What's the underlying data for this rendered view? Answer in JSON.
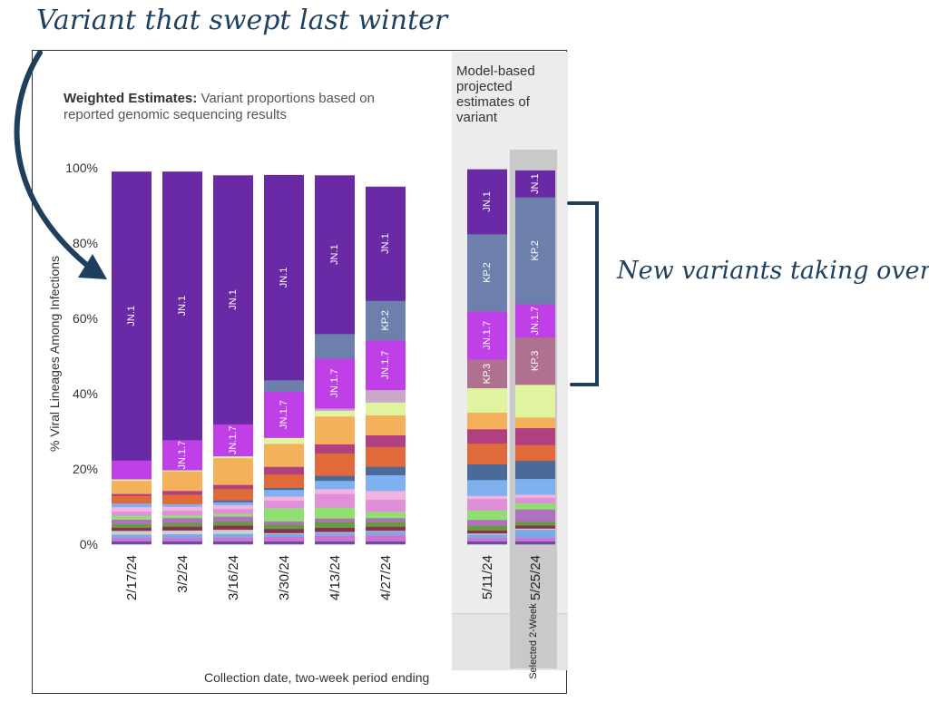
{
  "annotations": {
    "top": "Variant that swept last winter",
    "right": "New variants taking over"
  },
  "panel": {
    "title_bold": "Weighted Estimates:",
    "title_rest": "Variant proportions based on reported genomic sequencing results",
    "projected_title": "Model-based projected estimates of variant",
    "selected_label": "Selected 2-Week"
  },
  "colors": {
    "JN.1": "#6a2aa6",
    "KP.2": "#6d7fab",
    "JN.1.7": "#c040e8",
    "KP.3": "#b07090",
    "annotation": "#1f3f5f"
  },
  "chart_data": {
    "type": "bar",
    "stacked": true,
    "xlabel": "Collection date, two-week period ending",
    "ylabel": "% Viral Lineages Among Infections",
    "ylim": [
      0,
      100
    ],
    "yticks": [
      "0%",
      "20%",
      "40%",
      "60%",
      "80%",
      "100%"
    ],
    "categories": [
      "2/17/24",
      "3/2/24",
      "3/16/24",
      "3/30/24",
      "4/13/24",
      "4/27/24",
      "5/11/24",
      "5/25/24"
    ],
    "projected_categories": [
      "5/11/24",
      "5/25/24"
    ],
    "selected_category": "5/25/24",
    "segment_labels": [
      "JN.1",
      "KP.2",
      "JN.1.7",
      "KP.3"
    ],
    "series": [
      {
        "name": "",
        "color": "#6a4fa0",
        "values": [
          0.8,
          0.8,
          0.8,
          0.8,
          0.8,
          0.8,
          0.8,
          0.8
        ]
      },
      {
        "name": "",
        "color": "#d070d0",
        "values": [
          0.9,
          0.9,
          1.0,
          1.2,
          1.5,
          1.6,
          0.9,
          0.9
        ]
      },
      {
        "name": "",
        "color": "#7da8e8",
        "values": [
          0.9,
          1.0,
          1.0,
          0.8,
          0.8,
          1.0,
          0.9,
          2.2
        ]
      },
      {
        "name": "",
        "color": "#cfcfcf",
        "values": [
          1.0,
          1.0,
          1.1,
          0.2,
          0.2,
          0.2,
          0.3,
          0.3
        ]
      },
      {
        "name": "",
        "color": "#8a3050",
        "values": [
          0.8,
          1.0,
          1.1,
          1.1,
          1.1,
          1.1,
          0.8,
          0.8
        ]
      },
      {
        "name": "",
        "color": "#6a9a40",
        "values": [
          1.0,
          1.0,
          1.1,
          1.1,
          1.6,
          1.3,
          1.3,
          1.0
        ]
      },
      {
        "name": "",
        "color": "#b070c0",
        "values": [
          1.2,
          1.3,
          1.3,
          0.9,
          0.9,
          1.0,
          1.5,
          3.3
        ]
      },
      {
        "name": "",
        "color": "#90e070",
        "values": [
          1.0,
          0.7,
          0.7,
          3.5,
          2.9,
          1.6,
          2.5,
          1.6
        ]
      },
      {
        "name": "",
        "color": "#e090d8",
        "values": [
          1.1,
          1.3,
          1.3,
          2.0,
          3.6,
          3.3,
          3.1,
          1.5
        ]
      },
      {
        "name": "",
        "color": "#f4b4e0",
        "values": [
          1.2,
          1.0,
          1.0,
          1.1,
          1.3,
          2.3,
          0.8,
          0.8
        ]
      },
      {
        "name": "",
        "color": "#7fb0f0",
        "values": [
          1.0,
          0.7,
          0.8,
          1.8,
          2.2,
          4.2,
          4.2,
          4.2
        ]
      },
      {
        "name": "",
        "color": "#4a6a9a",
        "values": [
          0.0,
          0.0,
          0.5,
          0.5,
          1.3,
          2.2,
          4.2,
          4.8
        ]
      },
      {
        "name": "",
        "color": "#e06a3a",
        "values": [
          2.0,
          2.5,
          3.0,
          3.6,
          6.0,
          5.3,
          5.5,
          4.2
        ]
      },
      {
        "name": "",
        "color": "#b04080",
        "values": [
          0.5,
          1.0,
          1.1,
          2.0,
          2.4,
          3.1,
          3.8,
          4.5
        ]
      },
      {
        "name": "",
        "color": "#f4b05a",
        "values": [
          3.5,
          5.2,
          7.1,
          6.1,
          7.4,
          5.3,
          4.4,
          2.8
        ]
      },
      {
        "name": "",
        "color": "#e0f4a0",
        "values": [
          0.4,
          0.3,
          0.5,
          1.6,
          1.5,
          3.4,
          6.5,
          8.7
        ]
      },
      {
        "name": "",
        "color": "#c8a8c8",
        "values": [
          0.0,
          0.0,
          0.0,
          0.0,
          0.6,
          3.3,
          0.0,
          0.0
        ]
      },
      {
        "name": "",
        "color": "#b07090",
        "label": "KP.3",
        "values": [
          0.0,
          0.0,
          0.0,
          0.0,
          0.0,
          0.0,
          7.6,
          12.6
        ]
      },
      {
        "name": "",
        "color": "#c040e8",
        "label": "JN.1.7",
        "values": [
          5.0,
          8.0,
          8.5,
          12.3,
          13.3,
          13.2,
          12.8,
          8.8
        ]
      },
      {
        "name": "",
        "color": "#6d7fab",
        "label": "KP.2",
        "values": [
          0.0,
          0.0,
          0.0,
          3.0,
          6.5,
          10.5,
          20.5,
          28.4
        ]
      },
      {
        "name": "",
        "color": "#6a2aa6",
        "label": "JN.1",
        "values": [
          76.7,
          71.3,
          66.1,
          54.5,
          42.1,
          30.3,
          17.2,
          7.1
        ]
      }
    ]
  }
}
